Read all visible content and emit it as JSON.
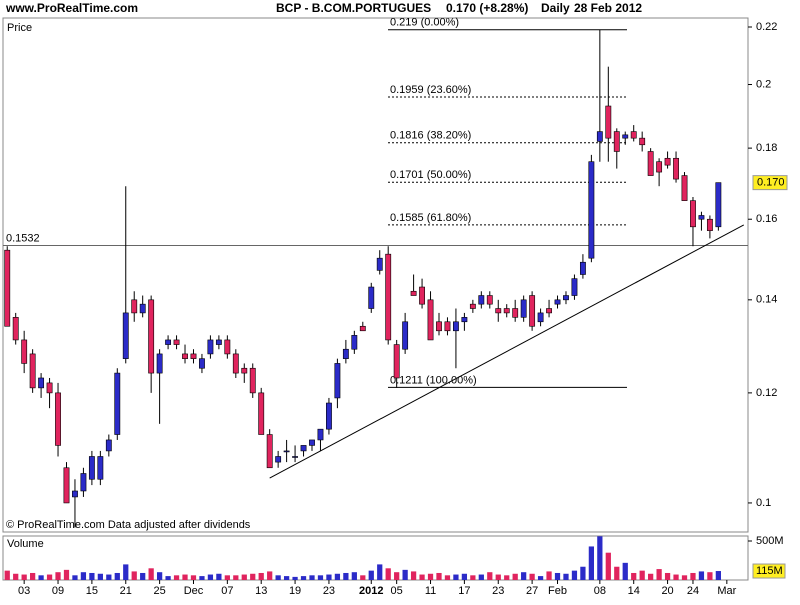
{
  "chart_data": {
    "type": "candlestick",
    "site": "www.ProRealTime.com",
    "title": "BCP - B.COM.PORTUGUES",
    "quote": "0.170 (+8.28%)",
    "period": "Daily",
    "date": "28 Feb 2012",
    "price_label": "Price",
    "volume_label": "Volume",
    "footer": "© ProRealTime.com  Data adjusted after dividends",
    "ylog": true,
    "ylim": [
      0.0953,
      0.2233
    ],
    "yticks": [
      0.22,
      0.2,
      0.18,
      0.16,
      0.14,
      0.12,
      0.1
    ],
    "xlim": [
      -0.5,
      87.5
    ],
    "xticks": [
      {
        "value": 2,
        "label": "03"
      },
      {
        "value": 6,
        "label": "09"
      },
      {
        "value": 10,
        "label": "15"
      },
      {
        "value": 14,
        "label": "21"
      },
      {
        "value": 18,
        "label": "25"
      },
      {
        "value": 22,
        "label": "Dec"
      },
      {
        "value": 26,
        "label": "07"
      },
      {
        "value": 30,
        "label": "13"
      },
      {
        "value": 34,
        "label": "19"
      },
      {
        "value": 38,
        "label": "23"
      },
      {
        "value": 43,
        "label": "2012"
      },
      {
        "value": 46,
        "label": "05"
      },
      {
        "value": 50,
        "label": "11"
      },
      {
        "value": 54,
        "label": "17"
      },
      {
        "value": 58,
        "label": "23"
      },
      {
        "value": 62,
        "label": "27"
      },
      {
        "value": 65,
        "label": "Feb"
      },
      {
        "value": 70,
        "label": "08"
      },
      {
        "value": 74,
        "label": "14"
      },
      {
        "value": 78,
        "label": "20"
      },
      {
        "value": 81,
        "label": "24"
      },
      {
        "value": 85,
        "label": "Mar"
      }
    ],
    "up_color": "#2b2bc8",
    "down_color": "#e0245e",
    "open": [
      0.152,
      0.136,
      0.131,
      0.128,
      0.121,
      0.122,
      0.12,
      0.106,
      0.101,
      0.102,
      0.104,
      0.104,
      0.109,
      0.112,
      0.127,
      0.14,
      0.137,
      0.14,
      0.124,
      0.13,
      0.131,
      0.128,
      0.128,
      0.125,
      0.128,
      0.13,
      0.131,
      0.128,
      0.125,
      0.125,
      0.12,
      0.112,
      0.107,
      0.109,
      0.108,
      0.109,
      0.11,
      0.111,
      0.113,
      0.119,
      0.127,
      0.129,
      0.134,
      0.138,
      0.147,
      0.151,
      0.13,
      0.129,
      0.142,
      0.143,
      0.14,
      0.135,
      0.135,
      0.133,
      0.135,
      0.139,
      0.139,
      0.141,
      0.138,
      0.138,
      0.138,
      0.136,
      0.141,
      0.135,
      0.138,
      0.139,
      0.14,
      0.141,
      0.146,
      0.15,
      0.182,
      0.193,
      0.185,
      0.183,
      0.185,
      0.183,
      0.179,
      0.176,
      0.177,
      0.177,
      0.172,
      0.165,
      0.16,
      0.16,
      0.158
    ],
    "high": [
      0.153,
      0.137,
      0.133,
      0.129,
      0.124,
      0.123,
      0.122,
      0.107,
      0.104,
      0.106,
      0.109,
      0.109,
      0.112,
      0.125,
      0.169,
      0.142,
      0.141,
      0.141,
      0.129,
      0.132,
      0.132,
      0.13,
      0.129,
      0.128,
      0.132,
      0.132,
      0.132,
      0.129,
      0.126,
      0.126,
      0.121,
      0.113,
      0.109,
      0.111,
      0.11,
      0.11,
      0.111,
      0.113,
      0.119,
      0.127,
      0.131,
      0.133,
      0.135,
      0.144,
      0.152,
      0.153,
      0.131,
      0.137,
      0.146,
      0.145,
      0.142,
      0.137,
      0.136,
      0.138,
      0.137,
      0.14,
      0.142,
      0.142,
      0.14,
      0.139,
      0.14,
      0.141,
      0.142,
      0.138,
      0.14,
      0.141,
      0.142,
      0.146,
      0.151,
      0.178,
      0.219,
      0.206,
      0.186,
      0.185,
      0.187,
      0.185,
      0.18,
      0.177,
      0.179,
      0.179,
      0.173,
      0.166,
      0.162,
      0.161,
      0.17
    ],
    "low": [
      0.134,
      0.13,
      0.124,
      0.12,
      0.119,
      0.117,
      0.108,
      0.1,
      0.096,
      0.101,
      0.103,
      0.103,
      0.108,
      0.111,
      0.126,
      0.135,
      0.136,
      0.12,
      0.114,
      0.129,
      0.129,
      0.126,
      0.126,
      0.124,
      0.127,
      0.129,
      0.127,
      0.123,
      0.122,
      0.119,
      0.112,
      0.106,
      0.106,
      0.107,
      0.107,
      0.108,
      0.109,
      0.109,
      0.112,
      0.117,
      0.126,
      0.128,
      0.133,
      0.137,
      0.146,
      0.13,
      0.121,
      0.128,
      0.141,
      0.138,
      0.131,
      0.132,
      0.132,
      0.125,
      0.133,
      0.137,
      0.138,
      0.138,
      0.135,
      0.136,
      0.135,
      0.135,
      0.133,
      0.134,
      0.136,
      0.138,
      0.139,
      0.14,
      0.145,
      0.149,
      0.176,
      0.176,
      0.174,
      0.181,
      0.182,
      0.179,
      0.172,
      0.169,
      0.174,
      0.17,
      0.165,
      0.153,
      0.157,
      0.155,
      0.157
    ],
    "close": [
      0.134,
      0.131,
      0.126,
      0.121,
      0.123,
      0.12,
      0.11,
      0.1,
      0.102,
      0.105,
      0.108,
      0.108,
      0.111,
      0.124,
      0.137,
      0.137,
      0.139,
      0.124,
      0.128,
      0.131,
      0.13,
      0.127,
      0.127,
      0.127,
      0.131,
      0.131,
      0.128,
      0.124,
      0.124,
      0.12,
      0.112,
      0.106,
      0.108,
      0.109,
      0.108,
      0.11,
      0.111,
      0.113,
      0.118,
      0.126,
      0.129,
      0.132,
      0.133,
      0.143,
      0.15,
      0.131,
      0.123,
      0.135,
      0.141,
      0.139,
      0.131,
      0.133,
      0.133,
      0.135,
      0.136,
      0.138,
      0.141,
      0.139,
      0.137,
      0.137,
      0.136,
      0.14,
      0.134,
      0.137,
      0.137,
      0.14,
      0.141,
      0.145,
      0.149,
      0.176,
      0.185,
      0.183,
      0.179,
      0.184,
      0.183,
      0.181,
      0.172,
      0.173,
      0.175,
      0.171,
      0.165,
      0.158,
      0.161,
      0.157,
      0.17
    ],
    "price_tag": {
      "value": 0.17,
      "label": "0.170"
    },
    "hline": {
      "value": 0.1532,
      "label": "0.1532"
    },
    "fib": [
      {
        "value": 0.219,
        "label": "0.219 (0.00%)"
      },
      {
        "value": 0.1959,
        "label": "0.1959 (23.60%)"
      },
      {
        "value": 0.1816,
        "label": "0.1816 (38.20%)"
      },
      {
        "value": 0.1701,
        "label": "0.1701 (50.00%)"
      },
      {
        "value": 0.1585,
        "label": "0.1585 (61.80%)"
      },
      {
        "value": 0.1211,
        "label": "0.1211 (100.00%)"
      }
    ],
    "trendline": {
      "x": [
        31,
        87
      ],
      "y": [
        0.1042,
        0.1585
      ]
    },
    "volume": {
      "values": [
        120,
        80,
        70,
        90,
        60,
        70,
        100,
        130,
        60,
        100,
        90,
        80,
        70,
        90,
        200,
        110,
        90,
        150,
        100,
        50,
        60,
        70,
        60,
        50,
        70,
        80,
        60,
        60,
        70,
        80,
        90,
        110,
        60,
        50,
        40,
        50,
        60,
        60,
        70,
        80,
        90,
        100,
        60,
        120,
        200,
        150,
        100,
        130,
        110,
        70,
        80,
        90,
        60,
        70,
        80,
        60,
        70,
        100,
        70,
        60,
        80,
        100,
        80,
        50,
        110,
        90,
        80,
        120,
        170,
        430,
        560,
        350,
        170,
        220,
        90,
        120,
        80,
        140,
        90,
        70,
        60,
        90,
        110,
        100,
        115
      ],
      "ylim": [
        0,
        564
      ],
      "yticks": [
        {
          "value": 500,
          "label": "500M"
        }
      ],
      "tag": {
        "value": 115,
        "label": "115M"
      }
    }
  }
}
